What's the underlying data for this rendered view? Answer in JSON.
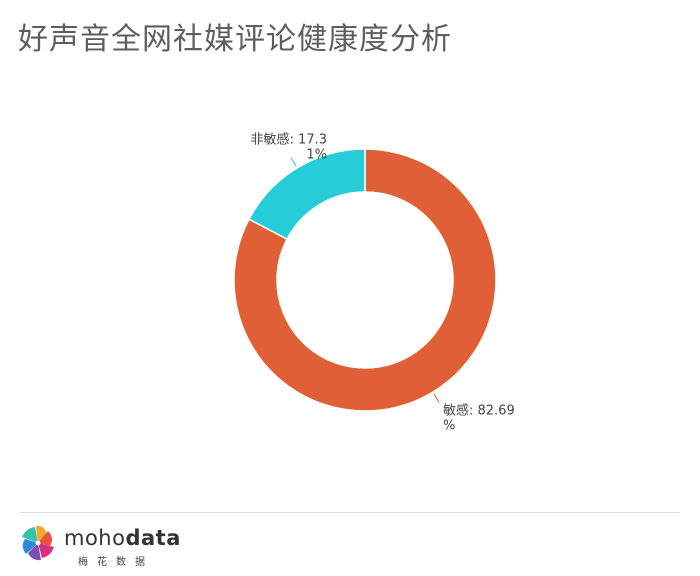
{
  "title": "好声音全网社媒评论健康度分析",
  "chart_data": {
    "type": "pie",
    "donut": true,
    "slices": [
      {
        "label": "敏感",
        "value": 82.69,
        "display_line1": "敏感: 82.69",
        "display_line2": "%",
        "color": "#e05f36"
      },
      {
        "label": "非敏感",
        "value": 17.31,
        "display_line1": "非敏感: 17.3",
        "display_line2": "1%",
        "color": "#26cdd9"
      }
    ],
    "legend": "none"
  },
  "brand": {
    "name_part1": "moho",
    "name_part2": "data",
    "subtitle": "梅花数据"
  }
}
